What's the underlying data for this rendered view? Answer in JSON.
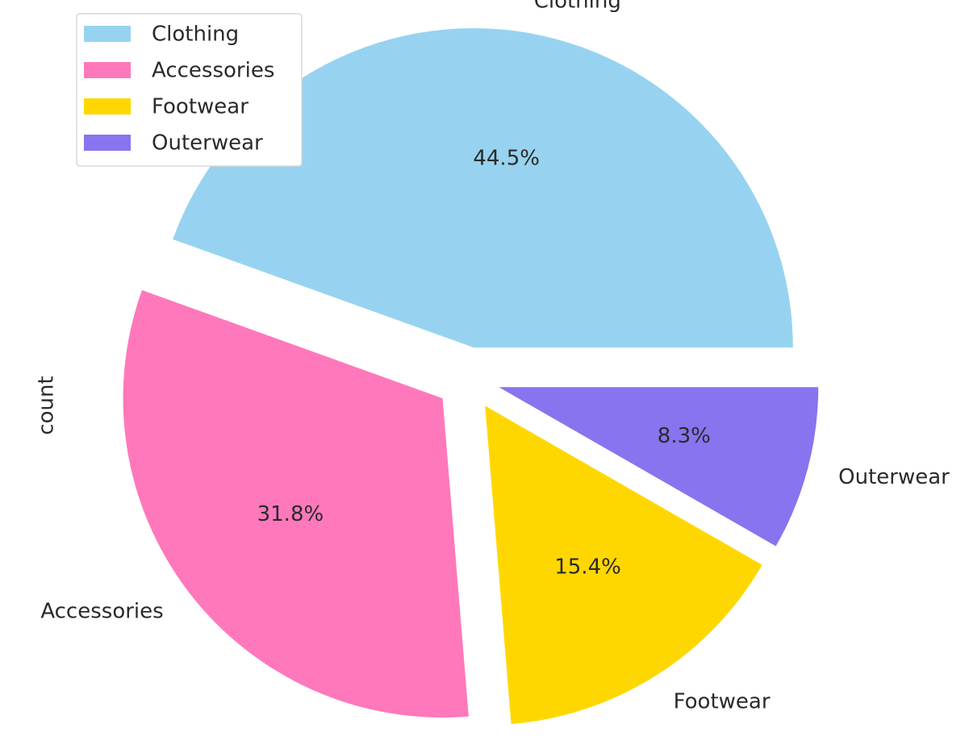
{
  "chart_data": {
    "type": "pie",
    "ylabel": "count",
    "categories": [
      "Clothing",
      "Accessories",
      "Footwear",
      "Outerwear"
    ],
    "values": [
      44.5,
      31.8,
      15.4,
      8.3
    ],
    "percent_labels": [
      "44.5%",
      "31.8%",
      "15.4%",
      "8.3%"
    ],
    "colors": [
      "#97d3f0",
      "#ff78bb",
      "#ffd700",
      "#8874ee"
    ],
    "exploded": true,
    "start_angle_deg": 0,
    "direction": "counterclockwise",
    "legend": {
      "placement": "upper-left",
      "entries": [
        "Clothing",
        "Accessories",
        "Footwear",
        "Outerwear"
      ]
    }
  }
}
